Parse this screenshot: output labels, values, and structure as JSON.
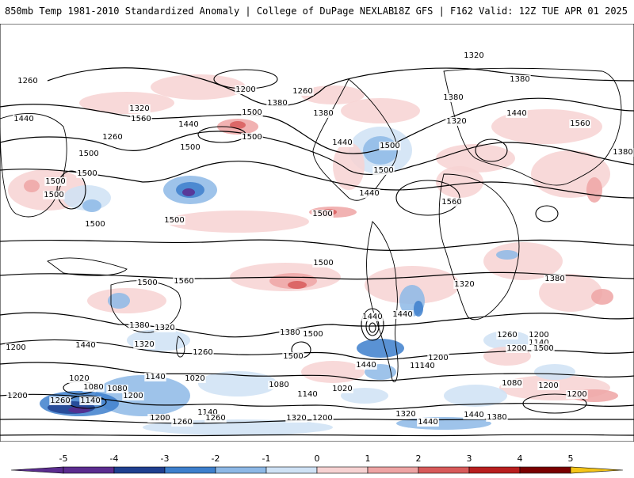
{
  "header": {
    "title": "850mb Temp 1981-2010 Standardized Anomaly | College of DuPage NEXLAB",
    "run_info": "18Z GFS | F162 Valid: 12Z TUE APR 01 2025"
  },
  "colors": {
    "neg5": "#5b2c8f",
    "neg4": "#1f3f8f",
    "neg3": "#3d7fcc",
    "neg2": "#8db8e6",
    "neg1": "#cfe2f5",
    "zero": "#ffffff",
    "pos1": "#f7d2d2",
    "pos2": "#eea4a4",
    "pos3": "#d85a5a",
    "pos4": "#b81e1e",
    "pos5": "#7a0000",
    "over": "#f5c518",
    "contour": "#000000",
    "coast": "#000000"
  },
  "contour_labels": [
    {
      "text": "1320"
    },
    {
      "text": "1260"
    },
    {
      "text": "1200"
    },
    {
      "text": "1260"
    },
    {
      "text": "1380"
    },
    {
      "text": "1440"
    },
    {
      "text": "1320"
    },
    {
      "text": "1260"
    },
    {
      "text": "1440"
    },
    {
      "text": "1560"
    },
    {
      "text": "1500"
    },
    {
      "text": "1320"
    },
    {
      "text": "1380"
    },
    {
      "text": "1380"
    },
    {
      "text": "1440"
    },
    {
      "text": "1500"
    },
    {
      "text": "1500"
    },
    {
      "text": "1380"
    },
    {
      "text": "1440"
    },
    {
      "text": "1500"
    },
    {
      "text": "1500"
    },
    {
      "text": "1560"
    },
    {
      "text": "1380"
    },
    {
      "text": "1500"
    },
    {
      "text": "1440"
    },
    {
      "text": "1500"
    },
    {
      "text": "1500"
    },
    {
      "text": "1500"
    },
    {
      "text": "1500"
    },
    {
      "text": "1500"
    },
    {
      "text": "1500"
    },
    {
      "text": "1500"
    },
    {
      "text": "1560"
    },
    {
      "text": "1500"
    },
    {
      "text": "1380"
    },
    {
      "text": "1320"
    },
    {
      "text": "1560"
    },
    {
      "text": "1380"
    },
    {
      "text": "1320"
    },
    {
      "text": "1380"
    },
    {
      "text": "1500"
    },
    {
      "text": "1440"
    },
    {
      "text": "1500"
    },
    {
      "text": "1440"
    },
    {
      "text": "1260"
    },
    {
      "text": "1200"
    },
    {
      "text": "1140"
    },
    {
      "text": "1260"
    },
    {
      "text": "1200"
    },
    {
      "text": "1440"
    },
    {
      "text": "1320"
    },
    {
      "text": "1260"
    },
    {
      "text": "1440"
    },
    {
      "text": "1500"
    },
    {
      "text": "1380"
    },
    {
      "text": "1200"
    },
    {
      "text": "1020"
    },
    {
      "text": "1080"
    },
    {
      "text": "1020"
    },
    {
      "text": "1080"
    },
    {
      "text": "1140"
    },
    {
      "text": "1200"
    },
    {
      "text": "1140"
    },
    {
      "text": "1020"
    },
    {
      "text": "1080"
    },
    {
      "text": "1200"
    },
    {
      "text": "1200"
    },
    {
      "text": "1140"
    },
    {
      "text": "1260"
    },
    {
      "text": "1080"
    },
    {
      "text": "1200"
    },
    {
      "text": "1140"
    },
    {
      "text": "1200"
    },
    {
      "text": "1260"
    },
    {
      "text": "1140"
    },
    {
      "text": "1320"
    },
    {
      "text": "1200"
    },
    {
      "text": "1260"
    },
    {
      "text": "1320"
    },
    {
      "text": "1200"
    },
    {
      "text": "1140"
    },
    {
      "text": "1440"
    },
    {
      "text": "1380"
    },
    {
      "text": "1260"
    },
    {
      "text": "1440"
    }
  ],
  "colorbar": {
    "ticks": [
      "-5",
      "-4",
      "-3",
      "-2",
      "-1",
      "0",
      "1",
      "2",
      "3",
      "4",
      "5"
    ]
  }
}
